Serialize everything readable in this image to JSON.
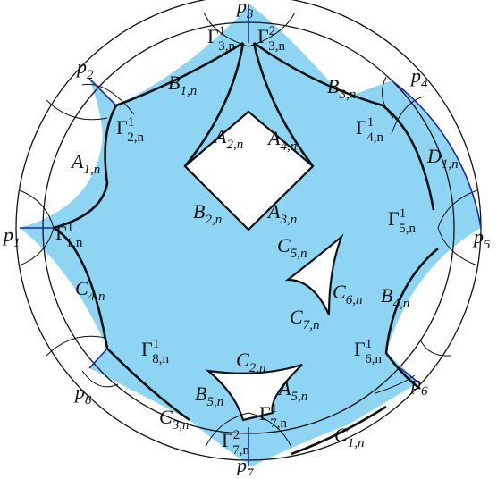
{
  "colors": {
    "fill": "#8ed5f4",
    "edge_blue": "#1a2aa8",
    "stroke": "#111111"
  },
  "vertices": [
    {
      "id": "p1",
      "base": "p",
      "sub": "1"
    },
    {
      "id": "p2",
      "base": "p",
      "sub": "2"
    },
    {
      "id": "p3",
      "base": "p",
      "sub": "3"
    },
    {
      "id": "p4",
      "base": "p",
      "sub": "4"
    },
    {
      "id": "p5",
      "base": "p",
      "sub": "5"
    },
    {
      "id": "p6",
      "base": "p",
      "sub": "6"
    },
    {
      "id": "p7",
      "base": "p",
      "sub": "7"
    },
    {
      "id": "p8",
      "base": "p",
      "sub": "8"
    }
  ],
  "arc_labels": [
    {
      "id": "B1",
      "base": "B",
      "sub": "1,n"
    },
    {
      "id": "B3",
      "base": "B",
      "sub": "3,n"
    },
    {
      "id": "A1",
      "base": "A",
      "sub": "1,n"
    },
    {
      "id": "D1",
      "base": "D",
      "sub": "1,n"
    },
    {
      "id": "C4",
      "base": "C",
      "sub": "4,n"
    },
    {
      "id": "B4",
      "base": "B",
      "sub": "4,n"
    },
    {
      "id": "C3",
      "base": "C",
      "sub": "3,n"
    },
    {
      "id": "C1",
      "base": "C",
      "sub": "1,n"
    },
    {
      "id": "A2",
      "base": "A",
      "sub": "2,n"
    },
    {
      "id": "A4",
      "base": "A",
      "sub": "4,n"
    },
    {
      "id": "B2",
      "base": "B",
      "sub": "2,n"
    },
    {
      "id": "A3",
      "base": "A",
      "sub": "3,n"
    },
    {
      "id": "C5",
      "base": "C",
      "sub": "5,n"
    },
    {
      "id": "C6",
      "base": "C",
      "sub": "6,n"
    },
    {
      "id": "C7",
      "base": "C",
      "sub": "7,n"
    },
    {
      "id": "C2",
      "base": "C",
      "sub": "2,n"
    },
    {
      "id": "B5",
      "base": "B",
      "sub": "5,n"
    },
    {
      "id": "A5",
      "base": "A",
      "sub": "5,n"
    }
  ],
  "gamma_labels": [
    {
      "id": "G31",
      "base": "Γ",
      "sup": "1",
      "sub": "3,n"
    },
    {
      "id": "G32",
      "base": "Γ",
      "sup": "2",
      "sub": "3,n"
    },
    {
      "id": "G21",
      "base": "Γ",
      "sup": "1",
      "sub": "2,n"
    },
    {
      "id": "G41",
      "base": "Γ",
      "sup": "1",
      "sub": "4,n"
    },
    {
      "id": "G11",
      "base": "Γ",
      "sup": "1",
      "sub": "1,n"
    },
    {
      "id": "G51",
      "base": "Γ",
      "sup": "1",
      "sub": "5,n"
    },
    {
      "id": "G81",
      "base": "Γ",
      "sup": "1",
      "sub": "8,n"
    },
    {
      "id": "G61",
      "base": "Γ",
      "sup": "1",
      "sub": "6,n"
    },
    {
      "id": "G71",
      "base": "Γ",
      "sup": "1",
      "sub": "7,n"
    },
    {
      "id": "G72",
      "base": "Γ",
      "sup": "2",
      "sub": "7,n"
    }
  ]
}
